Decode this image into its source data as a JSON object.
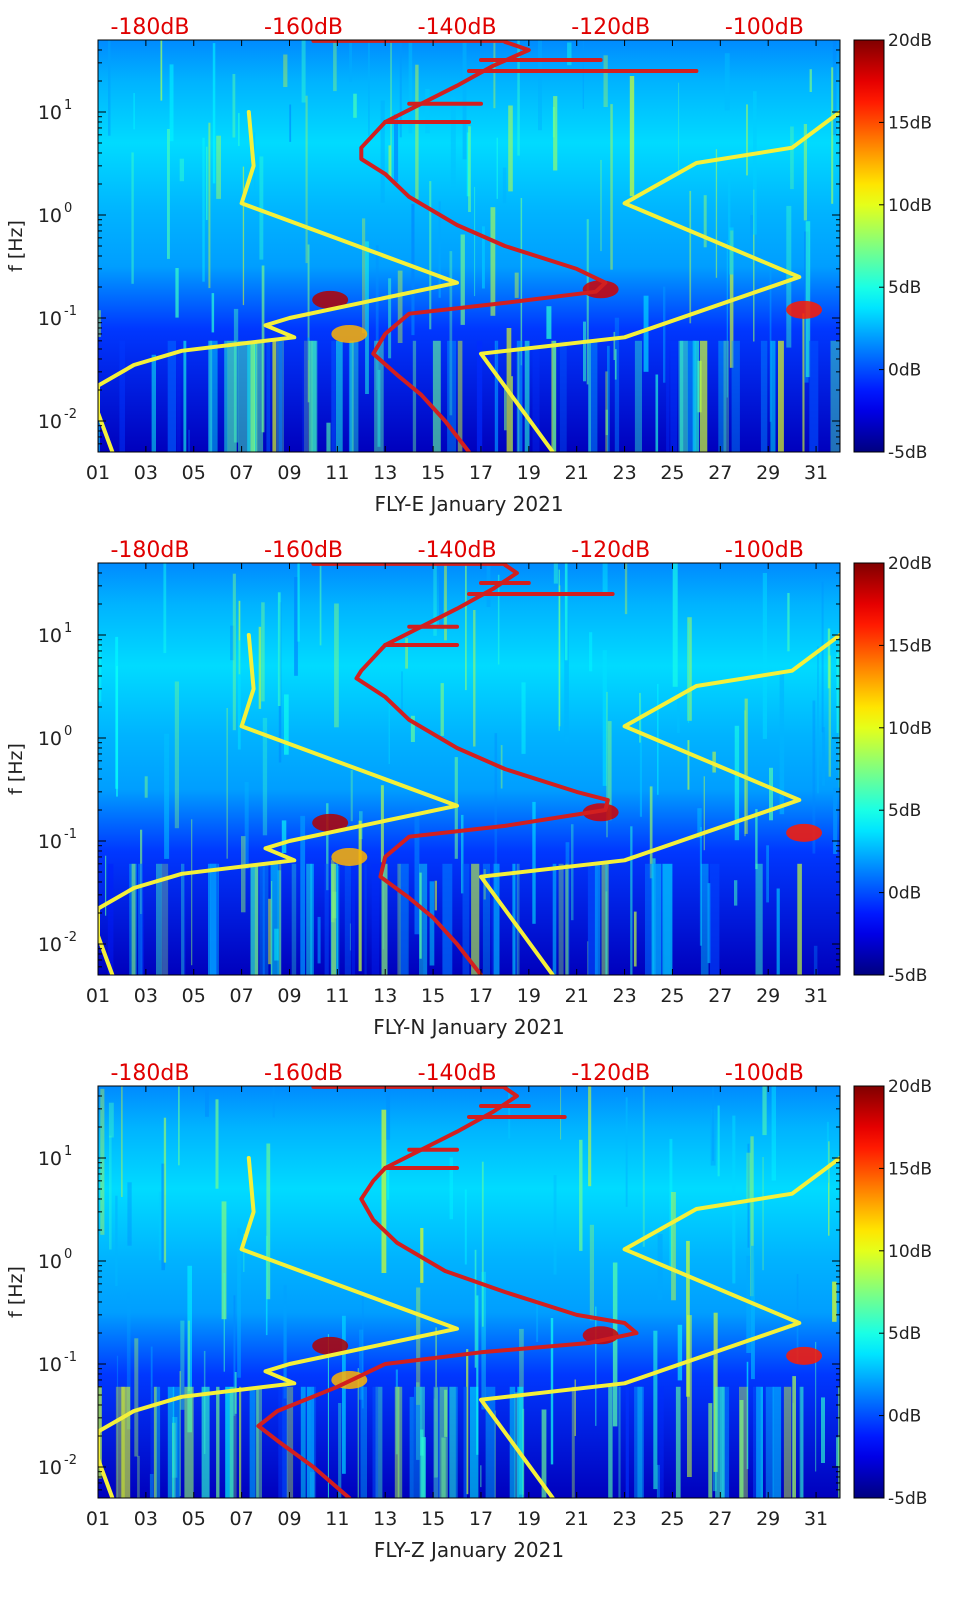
{
  "figure": {
    "colorbar": {
      "ticks": [
        "20dB",
        "15dB",
        "10dB",
        "5dB",
        "0dB",
        "-5dB"
      ],
      "range_db": [
        -5,
        20
      ],
      "colormap": "jet"
    },
    "top_axis_labels": [
      "-180dB",
      "-160dB",
      "-140dB",
      "-120dB",
      "-100dB"
    ],
    "top_axis_color": "#e00000",
    "x_tick_labels": [
      "01",
      "03",
      "05",
      "07",
      "09",
      "11",
      "13",
      "15",
      "17",
      "19",
      "21",
      "23",
      "25",
      "27",
      "29",
      "31"
    ],
    "y_label": "f [Hz]",
    "y_tick_labels": [
      {
        "base": "10",
        "exp": "1"
      },
      {
        "base": "10",
        "exp": "0"
      },
      {
        "base": "10",
        "exp": "-1"
      },
      {
        "base": "10",
        "exp": "-2"
      }
    ],
    "curve_colors": {
      "yellow": "#f4f03a",
      "red": "#d21f1f"
    }
  },
  "chart_data": [
    {
      "type": "heatmap",
      "xlabel": "FLY-E January 2021",
      "ylabel": "f [Hz]",
      "yscale": "log",
      "xlim": [
        1,
        32
      ],
      "ylim": [
        0.005,
        50
      ],
      "top_axis": {
        "ticks": [
          -180,
          -160,
          -140,
          -120,
          -100
        ],
        "unit": "dB"
      },
      "colorbar": {
        "range": [
          -5,
          20
        ],
        "unit": "dB"
      },
      "series": [
        {
          "color": "yellow",
          "segments": [
            [
              [
                1.6,
                0.005
              ],
              [
                1.0,
                0.012
              ],
              [
                1.0,
                0.022
              ],
              [
                2.5,
                0.035
              ],
              [
                4.5,
                0.048
              ],
              [
                9.2,
                0.065
              ],
              [
                8,
                0.085
              ],
              [
                9,
                0.1
              ],
              [
                16,
                0.22
              ],
              [
                7,
                1.3
              ],
              [
                7.5,
                3.0
              ],
              [
                7.3,
                10
              ]
            ],
            [
              [
                20,
                0.005
              ],
              [
                17,
                0.045
              ],
              [
                23,
                0.065
              ],
              [
                30.3,
                0.25
              ],
              [
                23,
                1.3
              ],
              [
                26,
                3.2
              ],
              [
                30,
                4.5
              ],
              [
                32,
                10
              ]
            ]
          ]
        },
        {
          "color": "red",
          "segments": [
            [
              [
                16.5,
                0.005
              ],
              [
                15.5,
                0.01
              ],
              [
                14.5,
                0.018
              ],
              [
                13.5,
                0.028
              ],
              [
                12.5,
                0.045
              ],
              [
                13,
                0.07
              ],
              [
                14,
                0.11
              ],
              [
                18,
                0.14
              ],
              [
                21.8,
                0.18
              ],
              [
                22.2,
                0.22
              ],
              [
                21,
                0.3
              ],
              [
                18,
                0.5
              ],
              [
                16,
                0.8
              ],
              [
                14,
                1.5
              ],
              [
                13,
                2.5
              ],
              [
                12,
                3.5
              ],
              [
                12,
                4.5
              ],
              [
                12.5,
                6
              ],
              [
                13,
                8
              ],
              [
                14.5,
                12
              ],
              [
                16,
                18
              ],
              [
                17.5,
                28
              ],
              [
                19,
                40
              ],
              [
                18,
                48
              ]
            ],
            [
              [
                13,
                8
              ],
              [
                16.5,
                8
              ]
            ],
            [
              [
                14,
                12
              ],
              [
                17,
                12
              ]
            ],
            [
              [
                16.5,
                25
              ],
              [
                26,
                25
              ]
            ],
            [
              [
                17,
                32
              ],
              [
                22,
                32
              ]
            ],
            [
              [
                10,
                49
              ],
              [
                18,
                49
              ]
            ]
          ]
        }
      ]
    },
    {
      "type": "heatmap",
      "xlabel": "FLY-N January 2021",
      "ylabel": "f [Hz]",
      "yscale": "log",
      "xlim": [
        1,
        32
      ],
      "ylim": [
        0.005,
        50
      ],
      "top_axis": {
        "ticks": [
          -180,
          -160,
          -140,
          -120,
          -100
        ],
        "unit": "dB"
      },
      "colorbar": {
        "range": [
          -5,
          20
        ],
        "unit": "dB"
      },
      "series": [
        {
          "color": "yellow",
          "segments": [
            [
              [
                1.6,
                0.005
              ],
              [
                1.0,
                0.012
              ],
              [
                1.0,
                0.022
              ],
              [
                2.5,
                0.035
              ],
              [
                4.5,
                0.048
              ],
              [
                9.2,
                0.065
              ],
              [
                8,
                0.085
              ],
              [
                9,
                0.1
              ],
              [
                16,
                0.22
              ],
              [
                7,
                1.3
              ],
              [
                7.5,
                3.0
              ],
              [
                7.3,
                10
              ]
            ],
            [
              [
                20,
                0.005
              ],
              [
                17,
                0.045
              ],
              [
                23,
                0.065
              ],
              [
                30.3,
                0.25
              ],
              [
                23,
                1.3
              ],
              [
                26,
                3.2
              ],
              [
                30,
                4.5
              ],
              [
                32,
                10
              ]
            ]
          ]
        },
        {
          "color": "red",
          "segments": [
            [
              [
                17,
                0.005
              ],
              [
                16,
                0.01
              ],
              [
                15,
                0.018
              ],
              [
                14,
                0.028
              ],
              [
                12.8,
                0.045
              ],
              [
                13,
                0.07
              ],
              [
                14,
                0.11
              ],
              [
                18,
                0.14
              ],
              [
                22.2,
                0.2
              ],
              [
                22.3,
                0.25
              ],
              [
                21,
                0.3
              ],
              [
                18,
                0.5
              ],
              [
                16,
                0.8
              ],
              [
                14,
                1.5
              ],
              [
                13,
                2.5
              ],
              [
                11.8,
                3.8
              ],
              [
                12,
                4.5
              ],
              [
                12.5,
                6
              ],
              [
                13,
                8
              ],
              [
                14.5,
                12
              ],
              [
                16,
                18
              ],
              [
                17.5,
                28
              ],
              [
                18.5,
                40
              ],
              [
                18,
                48
              ]
            ],
            [
              [
                13,
                8
              ],
              [
                16,
                8
              ]
            ],
            [
              [
                14,
                12
              ],
              [
                16,
                12
              ]
            ],
            [
              [
                16.5,
                25
              ],
              [
                22.5,
                25
              ]
            ],
            [
              [
                17,
                32
              ],
              [
                19,
                32
              ]
            ],
            [
              [
                10,
                49
              ],
              [
                18,
                49
              ]
            ]
          ]
        }
      ]
    },
    {
      "type": "heatmap",
      "xlabel": "FLY-Z January 2021",
      "ylabel": "f [Hz]",
      "yscale": "log",
      "xlim": [
        1,
        32
      ],
      "ylim": [
        0.005,
        50
      ],
      "top_axis": {
        "ticks": [
          -180,
          -160,
          -140,
          -120,
          -100
        ],
        "unit": "dB"
      },
      "colorbar": {
        "range": [
          -5,
          20
        ],
        "unit": "dB"
      },
      "series": [
        {
          "color": "yellow",
          "segments": [
            [
              [
                1.6,
                0.005
              ],
              [
                1.0,
                0.012
              ],
              [
                1.0,
                0.022
              ],
              [
                2.5,
                0.035
              ],
              [
                4.5,
                0.048
              ],
              [
                9.2,
                0.065
              ],
              [
                8,
                0.085
              ],
              [
                9,
                0.1
              ],
              [
                16,
                0.22
              ],
              [
                7,
                1.3
              ],
              [
                7.5,
                3.0
              ],
              [
                7.3,
                10
              ]
            ],
            [
              [
                20,
                0.005
              ],
              [
                17,
                0.045
              ],
              [
                23,
                0.065
              ],
              [
                30.3,
                0.25
              ],
              [
                23,
                1.3
              ],
              [
                26,
                3.2
              ],
              [
                30,
                4.5
              ],
              [
                32,
                10
              ]
            ]
          ]
        },
        {
          "color": "red",
          "segments": [
            [
              [
                11.5,
                0.005
              ],
              [
                10,
                0.01
              ],
              [
                8.5,
                0.018
              ],
              [
                7.7,
                0.025
              ],
              [
                8.5,
                0.035
              ],
              [
                11,
                0.06
              ],
              [
                13,
                0.1
              ],
              [
                17,
                0.13
              ],
              [
                21.5,
                0.16
              ],
              [
                23.5,
                0.2
              ],
              [
                23,
                0.25
              ],
              [
                21,
                0.3
              ],
              [
                18,
                0.5
              ],
              [
                15.5,
                0.8
              ],
              [
                13.5,
                1.5
              ],
              [
                12.5,
                2.5
              ],
              [
                12,
                4
              ],
              [
                12.5,
                6
              ],
              [
                13,
                8
              ],
              [
                14.5,
                12
              ],
              [
                16,
                18
              ],
              [
                17.5,
                28
              ],
              [
                18.5,
                40
              ],
              [
                18,
                48
              ]
            ],
            [
              [
                13,
                8
              ],
              [
                16,
                8
              ]
            ],
            [
              [
                14,
                12
              ],
              [
                16,
                12
              ]
            ],
            [
              [
                16.5,
                25
              ],
              [
                20.5,
                25
              ]
            ],
            [
              [
                17,
                32
              ],
              [
                19,
                32
              ]
            ],
            [
              [
                10,
                49
              ],
              [
                18,
                49
              ]
            ]
          ]
        }
      ]
    }
  ]
}
